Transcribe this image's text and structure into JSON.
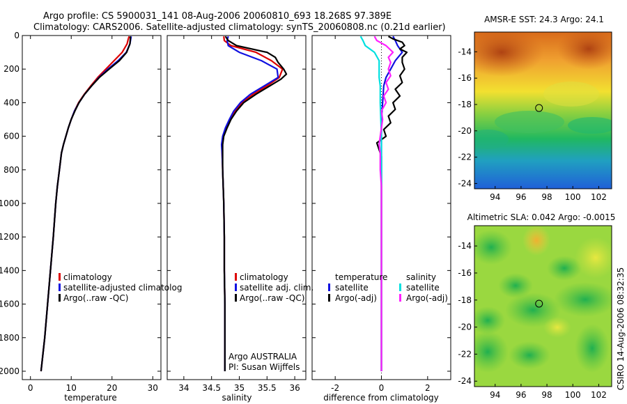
{
  "header": {
    "line1": "Argo profile: CS 5900031_141 08-Aug-2006 20060810_693 18.268S 97.389E",
    "line2": "Climatology: CARS2006. Satellite-adjusted climatology: synTS_20060808.nc (0.21d earlier)"
  },
  "side_label": "CSIRO 14-Aug-2006 08:32:35",
  "colors": {
    "climatology": "#dd0000",
    "satellite": "#1010e0",
    "argo": "#000000",
    "satellite_diff": "#00e0e0",
    "argo_adj_diff": "#ff20ff"
  },
  "chart_data": [
    {
      "type": "line",
      "name": "temperature",
      "xlabel": "temperature",
      "xlim": [
        -2,
        32
      ],
      "ylim": [
        2050,
        0
      ],
      "xticks": [
        "0",
        "10",
        "20",
        "30"
      ],
      "yticks": [
        "0",
        "200",
        "400",
        "600",
        "800",
        "1000",
        "1200",
        "1400",
        "1600",
        "1800",
        "2000"
      ],
      "legend": [
        "climatology",
        "satellite-adjusted climatolog",
        "Argo(..raw -QC)"
      ],
      "series": [
        {
          "name": "climatology",
          "color": "#dd0000",
          "points": [
            [
              24.2,
              5
            ],
            [
              24.0,
              20
            ],
            [
              23.7,
              50
            ],
            [
              22.5,
              100
            ],
            [
              20.5,
              150
            ],
            [
              18.5,
              200
            ],
            [
              16.5,
              250
            ],
            [
              14.8,
              300
            ],
            [
              13.2,
              350
            ],
            [
              11.8,
              400
            ],
            [
              10.8,
              450
            ],
            [
              10.0,
              500
            ],
            [
              9.3,
              550
            ],
            [
              8.7,
              600
            ],
            [
              8.1,
              650
            ],
            [
              7.6,
              700
            ],
            [
              7.1,
              800
            ],
            [
              6.6,
              900
            ],
            [
              6.2,
              1000
            ],
            [
              5.6,
              1200
            ],
            [
              4.9,
              1400
            ],
            [
              4.2,
              1600
            ],
            [
              3.5,
              1800
            ],
            [
              2.6,
              2000
            ]
          ]
        },
        {
          "name": "satellite",
          "color": "#1010e0",
          "points": [
            [
              24.7,
              5
            ],
            [
              24.6,
              20
            ],
            [
              24.4,
              50
            ],
            [
              23.5,
              100
            ],
            [
              21.5,
              150
            ],
            [
              19.0,
              200
            ],
            [
              16.8,
              250
            ],
            [
              15.0,
              300
            ],
            [
              13.3,
              350
            ],
            [
              11.9,
              400
            ],
            [
              10.8,
              450
            ],
            [
              10.0,
              500
            ],
            [
              9.3,
              550
            ],
            [
              8.7,
              600
            ],
            [
              8.1,
              650
            ],
            [
              7.6,
              700
            ],
            [
              7.1,
              800
            ],
            [
              6.6,
              900
            ],
            [
              6.2,
              1000
            ],
            [
              5.6,
              1200
            ],
            [
              4.9,
              1400
            ],
            [
              4.2,
              1600
            ],
            [
              3.5,
              1800
            ],
            [
              2.6,
              2000
            ]
          ]
        },
        {
          "name": "Argo(..raw -QC)",
          "color": "#000000",
          "points": [
            [
              24.5,
              5
            ],
            [
              24.5,
              20
            ],
            [
              24.4,
              50
            ],
            [
              23.6,
              100
            ],
            [
              21.8,
              150
            ],
            [
              19.3,
              200
            ],
            [
              16.9,
              250
            ],
            [
              15.0,
              300
            ],
            [
              13.3,
              350
            ],
            [
              11.9,
              400
            ],
            [
              10.9,
              450
            ],
            [
              10.0,
              500
            ],
            [
              9.3,
              550
            ],
            [
              8.7,
              600
            ],
            [
              8.1,
              650
            ],
            [
              7.6,
              700
            ],
            [
              7.1,
              800
            ],
            [
              6.6,
              900
            ],
            [
              6.2,
              1000
            ],
            [
              5.6,
              1200
            ],
            [
              4.9,
              1400
            ],
            [
              4.2,
              1600
            ],
            [
              3.5,
              1800
            ],
            [
              2.6,
              2000
            ]
          ]
        }
      ]
    },
    {
      "type": "line",
      "name": "salinity",
      "xlabel": "salinity",
      "xlim": [
        33.7,
        36.2
      ],
      "ylim": [
        2050,
        0
      ],
      "xticks": [
        "34",
        "34.5",
        "35",
        "35.5",
        "36"
      ],
      "legend": [
        "climatology",
        "satellite adj. clim.",
        "Argo(..raw -QC)"
      ],
      "annotations": [
        "Argo AUSTRALIA",
        "PI: Susan Wijffels"
      ],
      "series": [
        {
          "name": "climatology",
          "color": "#dd0000",
          "points": [
            [
              34.72,
              5
            ],
            [
              34.73,
              30
            ],
            [
              34.85,
              60
            ],
            [
              35.3,
              100
            ],
            [
              35.58,
              150
            ],
            [
              35.78,
              200
            ],
            [
              35.72,
              250
            ],
            [
              35.5,
              300
            ],
            [
              35.25,
              350
            ],
            [
              35.05,
              400
            ],
            [
              34.93,
              450
            ],
            [
              34.83,
              500
            ],
            [
              34.76,
              550
            ],
            [
              34.71,
              600
            ],
            [
              34.69,
              650
            ],
            [
              34.69,
              700
            ],
            [
              34.7,
              800
            ],
            [
              34.71,
              900
            ],
            [
              34.72,
              1000
            ],
            [
              34.73,
              1200
            ],
            [
              34.73,
              1400
            ],
            [
              34.74,
              1600
            ],
            [
              34.74,
              1800
            ],
            [
              34.74,
              2000
            ]
          ]
        },
        {
          "name": "satellite",
          "color": "#1010e0",
          "points": [
            [
              34.8,
              5
            ],
            [
              34.78,
              30
            ],
            [
              34.8,
              60
            ],
            [
              35.0,
              100
            ],
            [
              35.4,
              150
            ],
            [
              35.68,
              200
            ],
            [
              35.7,
              250
            ],
            [
              35.45,
              300
            ],
            [
              35.2,
              350
            ],
            [
              35.02,
              400
            ],
            [
              34.9,
              450
            ],
            [
              34.82,
              500
            ],
            [
              34.75,
              550
            ],
            [
              34.7,
              600
            ],
            [
              34.68,
              650
            ],
            [
              34.69,
              700
            ],
            [
              34.7,
              800
            ],
            [
              34.71,
              900
            ],
            [
              34.72,
              1000
            ],
            [
              34.73,
              1200
            ],
            [
              34.73,
              1400
            ],
            [
              34.74,
              1600
            ],
            [
              34.74,
              1800
            ],
            [
              34.74,
              2000
            ]
          ]
        },
        {
          "name": "Argo(..raw -QC)",
          "color": "#000000",
          "points": [
            [
              34.75,
              5
            ],
            [
              34.8,
              30
            ],
            [
              34.95,
              60
            ],
            [
              35.5,
              100
            ],
            [
              35.65,
              130
            ],
            [
              35.7,
              160
            ],
            [
              35.8,
              200
            ],
            [
              35.85,
              230
            ],
            [
              35.75,
              260
            ],
            [
              35.55,
              300
            ],
            [
              35.3,
              350
            ],
            [
              35.08,
              400
            ],
            [
              34.95,
              450
            ],
            [
              34.85,
              500
            ],
            [
              34.78,
              550
            ],
            [
              34.72,
              600
            ],
            [
              34.7,
              650
            ],
            [
              34.7,
              700
            ],
            [
              34.7,
              800
            ],
            [
              34.71,
              900
            ],
            [
              34.72,
              1000
            ],
            [
              34.73,
              1200
            ],
            [
              34.73,
              1400
            ],
            [
              34.74,
              1600
            ],
            [
              34.74,
              1800
            ],
            [
              34.74,
              2000
            ]
          ]
        }
      ]
    },
    {
      "type": "line",
      "name": "difference",
      "xlabel": "difference from climatology",
      "xlim": [
        -3,
        3
      ],
      "ylim": [
        2050,
        0
      ],
      "xticks": [
        "-2",
        "0",
        "2"
      ],
      "legend_left": [
        "temperature",
        "satellite",
        "Argo(-adj)"
      ],
      "legend_right": [
        "salinity",
        "satellite",
        "Argo(-adj)"
      ],
      "series": [
        {
          "name": "temperature satellite",
          "color": "#1010e0",
          "points": [
            [
              0.5,
              5
            ],
            [
              0.6,
              30
            ],
            [
              0.7,
              60
            ],
            [
              0.9,
              100
            ],
            [
              0.6,
              150
            ],
            [
              0.4,
              200
            ],
            [
              0.2,
              250
            ],
            [
              0.1,
              300
            ],
            [
              0.05,
              400
            ],
            [
              0.0,
              500
            ],
            [
              0.0,
              700
            ],
            [
              0.0,
              1000
            ],
            [
              0.0,
              2000
            ]
          ]
        },
        {
          "name": "temperature Argo(-adj)",
          "color": "#000000",
          "points": [
            [
              0.3,
              5
            ],
            [
              0.5,
              20
            ],
            [
              0.9,
              40
            ],
            [
              1.0,
              60
            ],
            [
              0.8,
              80
            ],
            [
              1.1,
              100
            ],
            [
              0.9,
              130
            ],
            [
              0.9,
              160
            ],
            [
              1.0,
              200
            ],
            [
              0.8,
              240
            ],
            [
              0.9,
              280
            ],
            [
              0.6,
              320
            ],
            [
              0.8,
              360
            ],
            [
              0.5,
              400
            ],
            [
              0.6,
              440
            ],
            [
              0.3,
              480
            ],
            [
              0.4,
              520
            ],
            [
              0.1,
              560
            ],
            [
              0.2,
              600
            ],
            [
              -0.2,
              640
            ],
            [
              -0.1,
              680
            ],
            [
              0.0,
              720
            ],
            [
              0.0,
              800
            ],
            [
              0.0,
              1000
            ],
            [
              0.0,
              2000
            ]
          ]
        },
        {
          "name": "salinity satellite",
          "color": "#00e0e0",
          "points": [
            [
              -0.9,
              5
            ],
            [
              -0.8,
              30
            ],
            [
              -0.7,
              60
            ],
            [
              -0.3,
              100
            ],
            [
              -0.1,
              150
            ],
            [
              -0.1,
              200
            ],
            [
              -0.1,
              250
            ],
            [
              -0.05,
              300
            ],
            [
              -0.05,
              400
            ],
            [
              0.0,
              600
            ],
            [
              0.0,
              1000
            ],
            [
              0.0,
              2000
            ]
          ]
        },
        {
          "name": "salinity Argo(-adj)",
          "color": "#ff20ff",
          "points": [
            [
              -0.3,
              5
            ],
            [
              -0.2,
              30
            ],
            [
              0.2,
              60
            ],
            [
              0.5,
              100
            ],
            [
              0.3,
              130
            ],
            [
              0.4,
              160
            ],
            [
              0.3,
              200
            ],
            [
              0.4,
              240
            ],
            [
              0.2,
              280
            ],
            [
              0.3,
              320
            ],
            [
              0.1,
              360
            ],
            [
              0.2,
              400
            ],
            [
              0.0,
              450
            ],
            [
              0.05,
              500
            ],
            [
              0.0,
              550
            ],
            [
              -0.05,
              600
            ],
            [
              -0.1,
              650
            ],
            [
              -0.05,
              700
            ],
            [
              -0.05,
              800
            ],
            [
              0.0,
              900
            ],
            [
              0.0,
              1000
            ],
            [
              0.0,
              2000
            ]
          ]
        }
      ]
    },
    {
      "type": "heatmap",
      "name": "sst-map",
      "title": "AMSR-E SST: 24.3 Argo: 24.1",
      "xticks": [
        "94",
        "96",
        "98",
        "100",
        "102"
      ],
      "yticks": [
        "-14",
        "-16",
        "-18",
        "-20",
        "-22",
        "-24"
      ],
      "xlim": [
        92.4,
        103
      ],
      "ylim": [
        -24.4,
        -12.5
      ],
      "marker": {
        "lon": 97.389,
        "lat": -18.268
      }
    },
    {
      "type": "heatmap",
      "name": "sla-map",
      "title": "Altimetric SLA: 0.042 Argo: -0.0015",
      "xticks": [
        "94",
        "96",
        "98",
        "100",
        "102"
      ],
      "yticks": [
        "-14",
        "-16",
        "-18",
        "-20",
        "-22",
        "-24"
      ],
      "xlim": [
        92.4,
        103
      ],
      "ylim": [
        -24.4,
        -12.5
      ],
      "marker": {
        "lon": 97.389,
        "lat": -18.268
      }
    }
  ]
}
